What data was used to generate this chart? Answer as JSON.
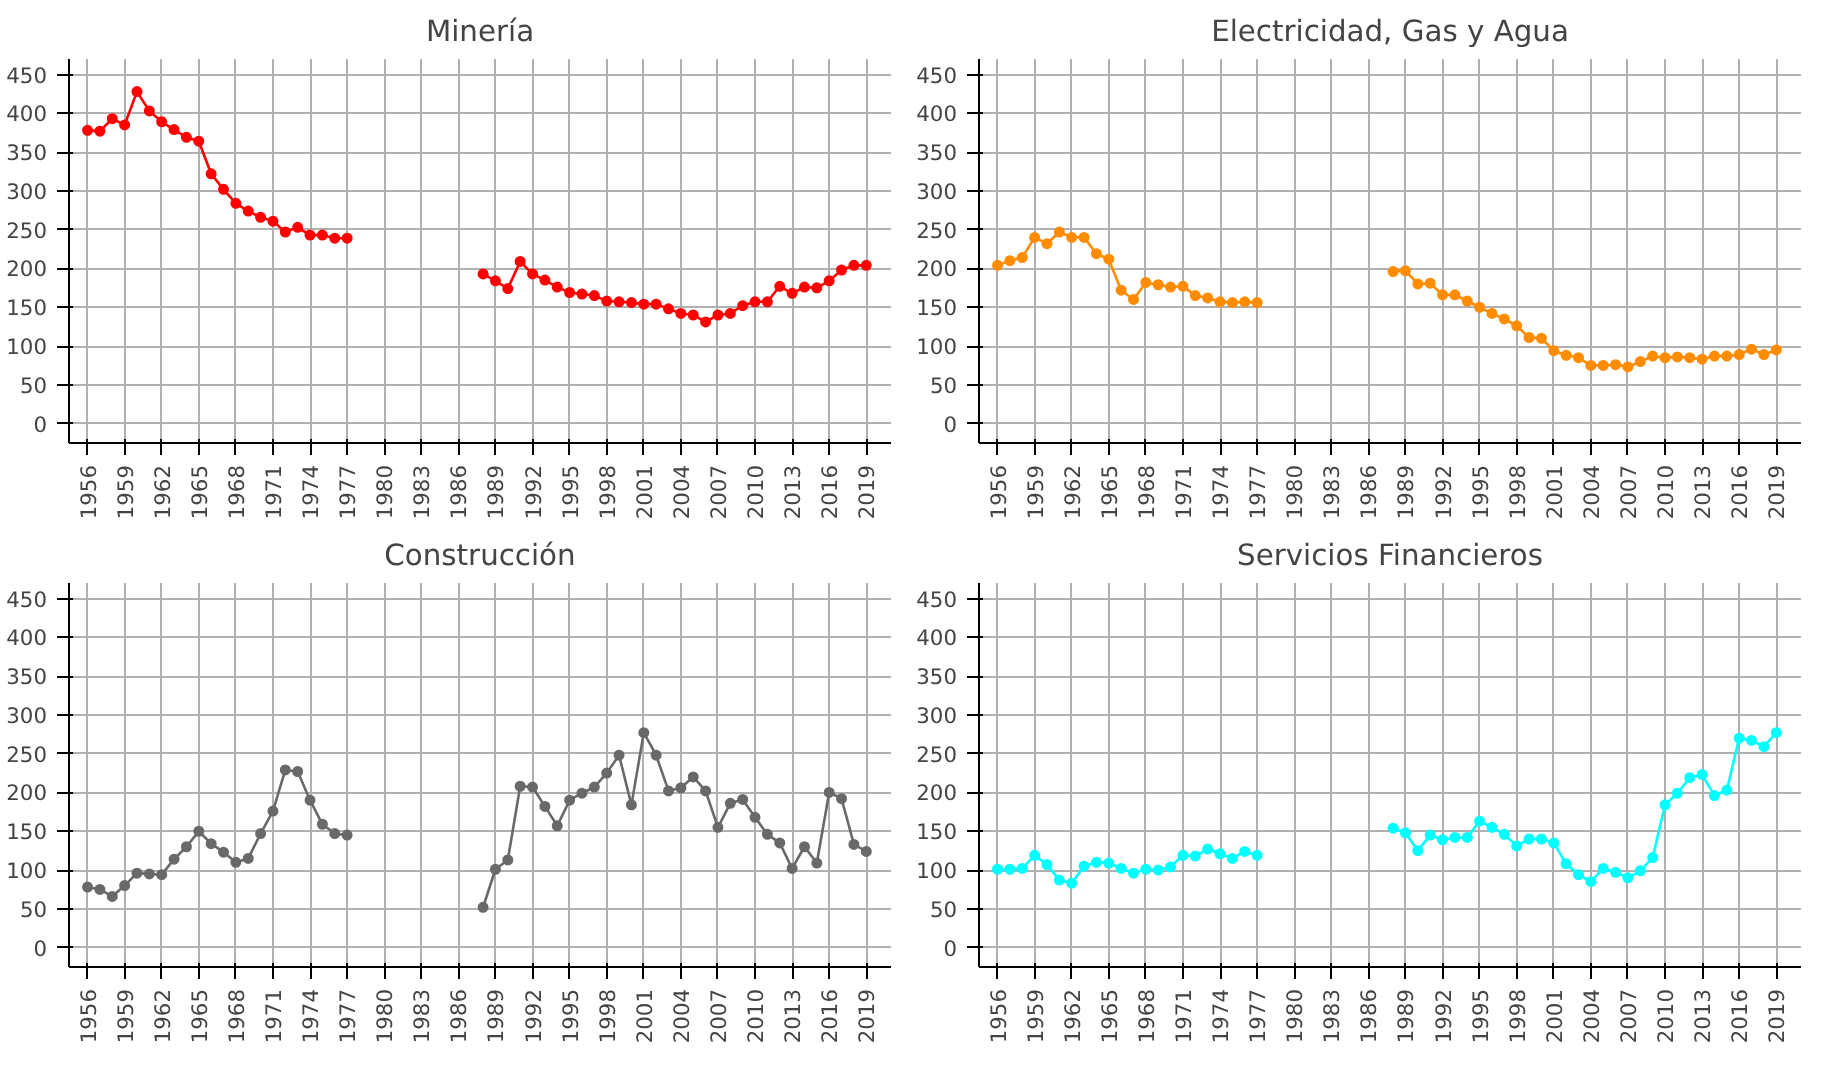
{
  "chart_data": [
    {
      "type": "line",
      "title": "Minería",
      "x": [
        1956,
        1957,
        1958,
        1959,
        1960,
        1961,
        1962,
        1963,
        1964,
        1965,
        1966,
        1967,
        1968,
        1969,
        1970,
        1971,
        1972,
        1973,
        1974,
        1975,
        1976,
        1977,
        1978,
        1979,
        1980,
        1981,
        1982,
        1983,
        1984,
        1985,
        1986,
        1987,
        1988,
        1989,
        1990,
        1991,
        1992,
        1993,
        1994,
        1995,
        1996,
        1997,
        1998,
        1999,
        2000,
        2001,
        2002,
        2003,
        2004,
        2005,
        2006,
        2007,
        2008,
        2009,
        2010,
        2011,
        2012,
        2013,
        2014,
        2015,
        2016,
        2017,
        2018,
        2019
      ],
      "xlim": [
        1954.5,
        2021
      ],
      "xticks": [
        1956,
        1959,
        1962,
        1965,
        1968,
        1971,
        1974,
        1977,
        1980,
        1983,
        1986,
        1989,
        1992,
        1995,
        1998,
        2001,
        2004,
        2007,
        2010,
        2013,
        2016,
        2019
      ],
      "ylim": [
        -25,
        470
      ],
      "yticks": [
        0,
        50,
        100,
        150,
        200,
        250,
        300,
        350,
        400,
        450
      ],
      "grid": true,
      "marker": "circle",
      "series": [
        {
          "color": "#ff0000",
          "values": [
            378,
            377,
            393,
            385,
            428,
            403,
            389,
            379,
            369,
            364,
            322,
            302,
            284,
            274,
            266,
            261,
            247,
            253,
            243,
            243,
            239,
            239,
            null,
            null,
            null,
            null,
            null,
            null,
            null,
            null,
            null,
            null,
            193,
            184,
            174,
            209,
            193,
            185,
            176,
            169,
            167,
            165,
            158,
            157,
            156,
            154,
            154,
            148,
            142,
            140,
            131,
            140,
            142,
            152,
            157,
            157,
            177,
            168,
            176,
            175,
            184,
            198,
            204,
            204
          ]
        }
      ]
    },
    {
      "type": "line",
      "title": "Electricidad, Gas y Agua",
      "x": [
        1956,
        1957,
        1958,
        1959,
        1960,
        1961,
        1962,
        1963,
        1964,
        1965,
        1966,
        1967,
        1968,
        1969,
        1970,
        1971,
        1972,
        1973,
        1974,
        1975,
        1976,
        1977,
        1978,
        1979,
        1980,
        1981,
        1982,
        1983,
        1984,
        1985,
        1986,
        1987,
        1988,
        1989,
        1990,
        1991,
        1992,
        1993,
        1994,
        1995,
        1996,
        1997,
        1998,
        1999,
        2000,
        2001,
        2002,
        2003,
        2004,
        2005,
        2006,
        2007,
        2008,
        2009,
        2010,
        2011,
        2012,
        2013,
        2014,
        2015,
        2016,
        2017,
        2018,
        2019
      ],
      "xlim": [
        1954.5,
        2021
      ],
      "xticks": [
        1956,
        1959,
        1962,
        1965,
        1968,
        1971,
        1974,
        1977,
        1980,
        1983,
        1986,
        1989,
        1992,
        1995,
        1998,
        2001,
        2004,
        2007,
        2010,
        2013,
        2016,
        2019
      ],
      "ylim": [
        -25,
        470
      ],
      "yticks": [
        0,
        50,
        100,
        150,
        200,
        250,
        300,
        350,
        400,
        450
      ],
      "grid": true,
      "marker": "circle",
      "series": [
        {
          "color": "#ff8c00",
          "values": [
            204,
            210,
            214,
            240,
            232,
            247,
            240,
            240,
            219,
            212,
            172,
            160,
            182,
            179,
            176,
            177,
            165,
            162,
            157,
            156,
            157,
            156,
            null,
            null,
            null,
            null,
            null,
            null,
            null,
            null,
            null,
            null,
            196,
            197,
            180,
            181,
            166,
            166,
            158,
            150,
            142,
            135,
            126,
            111,
            110,
            94,
            88,
            85,
            75,
            75,
            76,
            73,
            80,
            87,
            85,
            86,
            85,
            83,
            87,
            87,
            89,
            96,
            89,
            95
          ]
        }
      ]
    },
    {
      "type": "line",
      "title": "Construcción",
      "x": [
        1956,
        1957,
        1958,
        1959,
        1960,
        1961,
        1962,
        1963,
        1964,
        1965,
        1966,
        1967,
        1968,
        1969,
        1970,
        1971,
        1972,
        1973,
        1974,
        1975,
        1976,
        1977,
        1978,
        1979,
        1980,
        1981,
        1982,
        1983,
        1984,
        1985,
        1986,
        1987,
        1988,
        1989,
        1990,
        1991,
        1992,
        1993,
        1994,
        1995,
        1996,
        1997,
        1998,
        1999,
        2000,
        2001,
        2002,
        2003,
        2004,
        2005,
        2006,
        2007,
        2008,
        2009,
        2010,
        2011,
        2012,
        2013,
        2014,
        2015,
        2016,
        2017,
        2018,
        2019
      ],
      "xlim": [
        1954.5,
        2021
      ],
      "xticks": [
        1956,
        1959,
        1962,
        1965,
        1968,
        1971,
        1974,
        1977,
        1980,
        1983,
        1986,
        1989,
        1992,
        1995,
        1998,
        2001,
        2004,
        2007,
        2010,
        2013,
        2016,
        2019
      ],
      "ylim": [
        -25,
        470
      ],
      "yticks": [
        0,
        50,
        100,
        150,
        200,
        250,
        300,
        350,
        400,
        450
      ],
      "grid": true,
      "marker": "circle",
      "series": [
        {
          "color": "#696969",
          "values": [
            78,
            75,
            66,
            80,
            96,
            95,
            94,
            114,
            130,
            150,
            134,
            123,
            110,
            115,
            147,
            176,
            229,
            227,
            190,
            159,
            147,
            145,
            null,
            null,
            null,
            null,
            null,
            null,
            null,
            null,
            null,
            null,
            52,
            101,
            113,
            208,
            207,
            182,
            157,
            190,
            199,
            207,
            225,
            248,
            184,
            277,
            248,
            202,
            206,
            220,
            202,
            155,
            186,
            191,
            168,
            146,
            135,
            102,
            130,
            109,
            200,
            192,
            133,
            124
          ]
        }
      ]
    },
    {
      "type": "line",
      "title": "Servicios Financieros",
      "x": [
        1956,
        1957,
        1958,
        1959,
        1960,
        1961,
        1962,
        1963,
        1964,
        1965,
        1966,
        1967,
        1968,
        1969,
        1970,
        1971,
        1972,
        1973,
        1974,
        1975,
        1976,
        1977,
        1978,
        1979,
        1980,
        1981,
        1982,
        1983,
        1984,
        1985,
        1986,
        1987,
        1988,
        1989,
        1990,
        1991,
        1992,
        1993,
        1994,
        1995,
        1996,
        1997,
        1998,
        1999,
        2000,
        2001,
        2002,
        2003,
        2004,
        2005,
        2006,
        2007,
        2008,
        2009,
        2010,
        2011,
        2012,
        2013,
        2014,
        2015,
        2016,
        2017,
        2018,
        2019
      ],
      "xlim": [
        1954.5,
        2021
      ],
      "xticks": [
        1956,
        1959,
        1962,
        1965,
        1968,
        1971,
        1974,
        1977,
        1980,
        1983,
        1986,
        1989,
        1992,
        1995,
        1998,
        2001,
        2004,
        2007,
        2010,
        2013,
        2016,
        2019
      ],
      "ylim": [
        -25,
        470
      ],
      "yticks": [
        0,
        50,
        100,
        150,
        200,
        250,
        300,
        350,
        400,
        450
      ],
      "grid": true,
      "marker": "circle",
      "series": [
        {
          "color": "#00ffff",
          "values": [
            101,
            101,
            102,
            119,
            107,
            87,
            83,
            105,
            110,
            109,
            102,
            96,
            101,
            100,
            104,
            119,
            118,
            127,
            121,
            115,
            124,
            119,
            null,
            null,
            null,
            null,
            null,
            null,
            null,
            null,
            null,
            null,
            154,
            148,
            125,
            145,
            139,
            142,
            142,
            163,
            155,
            146,
            131,
            140,
            140,
            135,
            108,
            94,
            85,
            102,
            97,
            90,
            99,
            116,
            184,
            199,
            219,
            223,
            196,
            203,
            270,
            267,
            259,
            277
          ]
        }
      ]
    }
  ]
}
